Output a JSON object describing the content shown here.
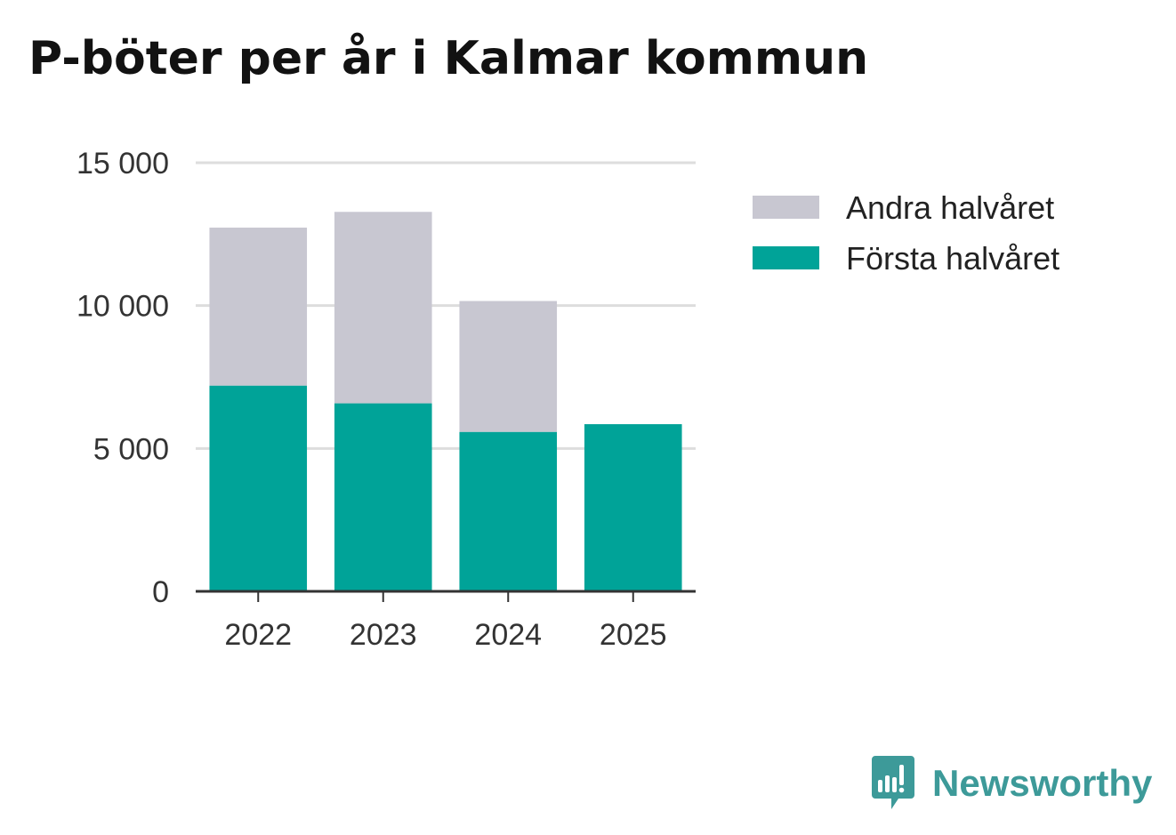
{
  "title": "P-böter per år i Kalmar kommun",
  "brand": {
    "name": "Newsworthy",
    "icon": "newsworthy-bar-chart-bubble-icon",
    "color": "#3d9a99"
  },
  "chart_data": {
    "type": "bar",
    "stacked": true,
    "title": "P-böter per år i Kalmar kommun",
    "categories": [
      "2022",
      "2023",
      "2024",
      "2025"
    ],
    "series": [
      {
        "name": "Första halvåret",
        "color": "#00a398",
        "values": [
          7200,
          6580,
          5580,
          5850
        ]
      },
      {
        "name": "Andra halvåret",
        "color": "#c8c7d1",
        "values": [
          5530,
          6700,
          4580,
          0
        ]
      }
    ],
    "legend": [
      {
        "name": "Andra halvåret",
        "color": "#c8c7d1"
      },
      {
        "name": "Första halvåret",
        "color": "#00a398"
      }
    ],
    "legend_position": "top-right",
    "ylim": [
      0,
      15000
    ],
    "yticks": [
      0,
      5000,
      10000,
      15000
    ],
    "ytick_labels": [
      "0",
      "5 000",
      "10 000",
      "15 000"
    ],
    "grid": true,
    "xlabel": "",
    "ylabel": ""
  }
}
